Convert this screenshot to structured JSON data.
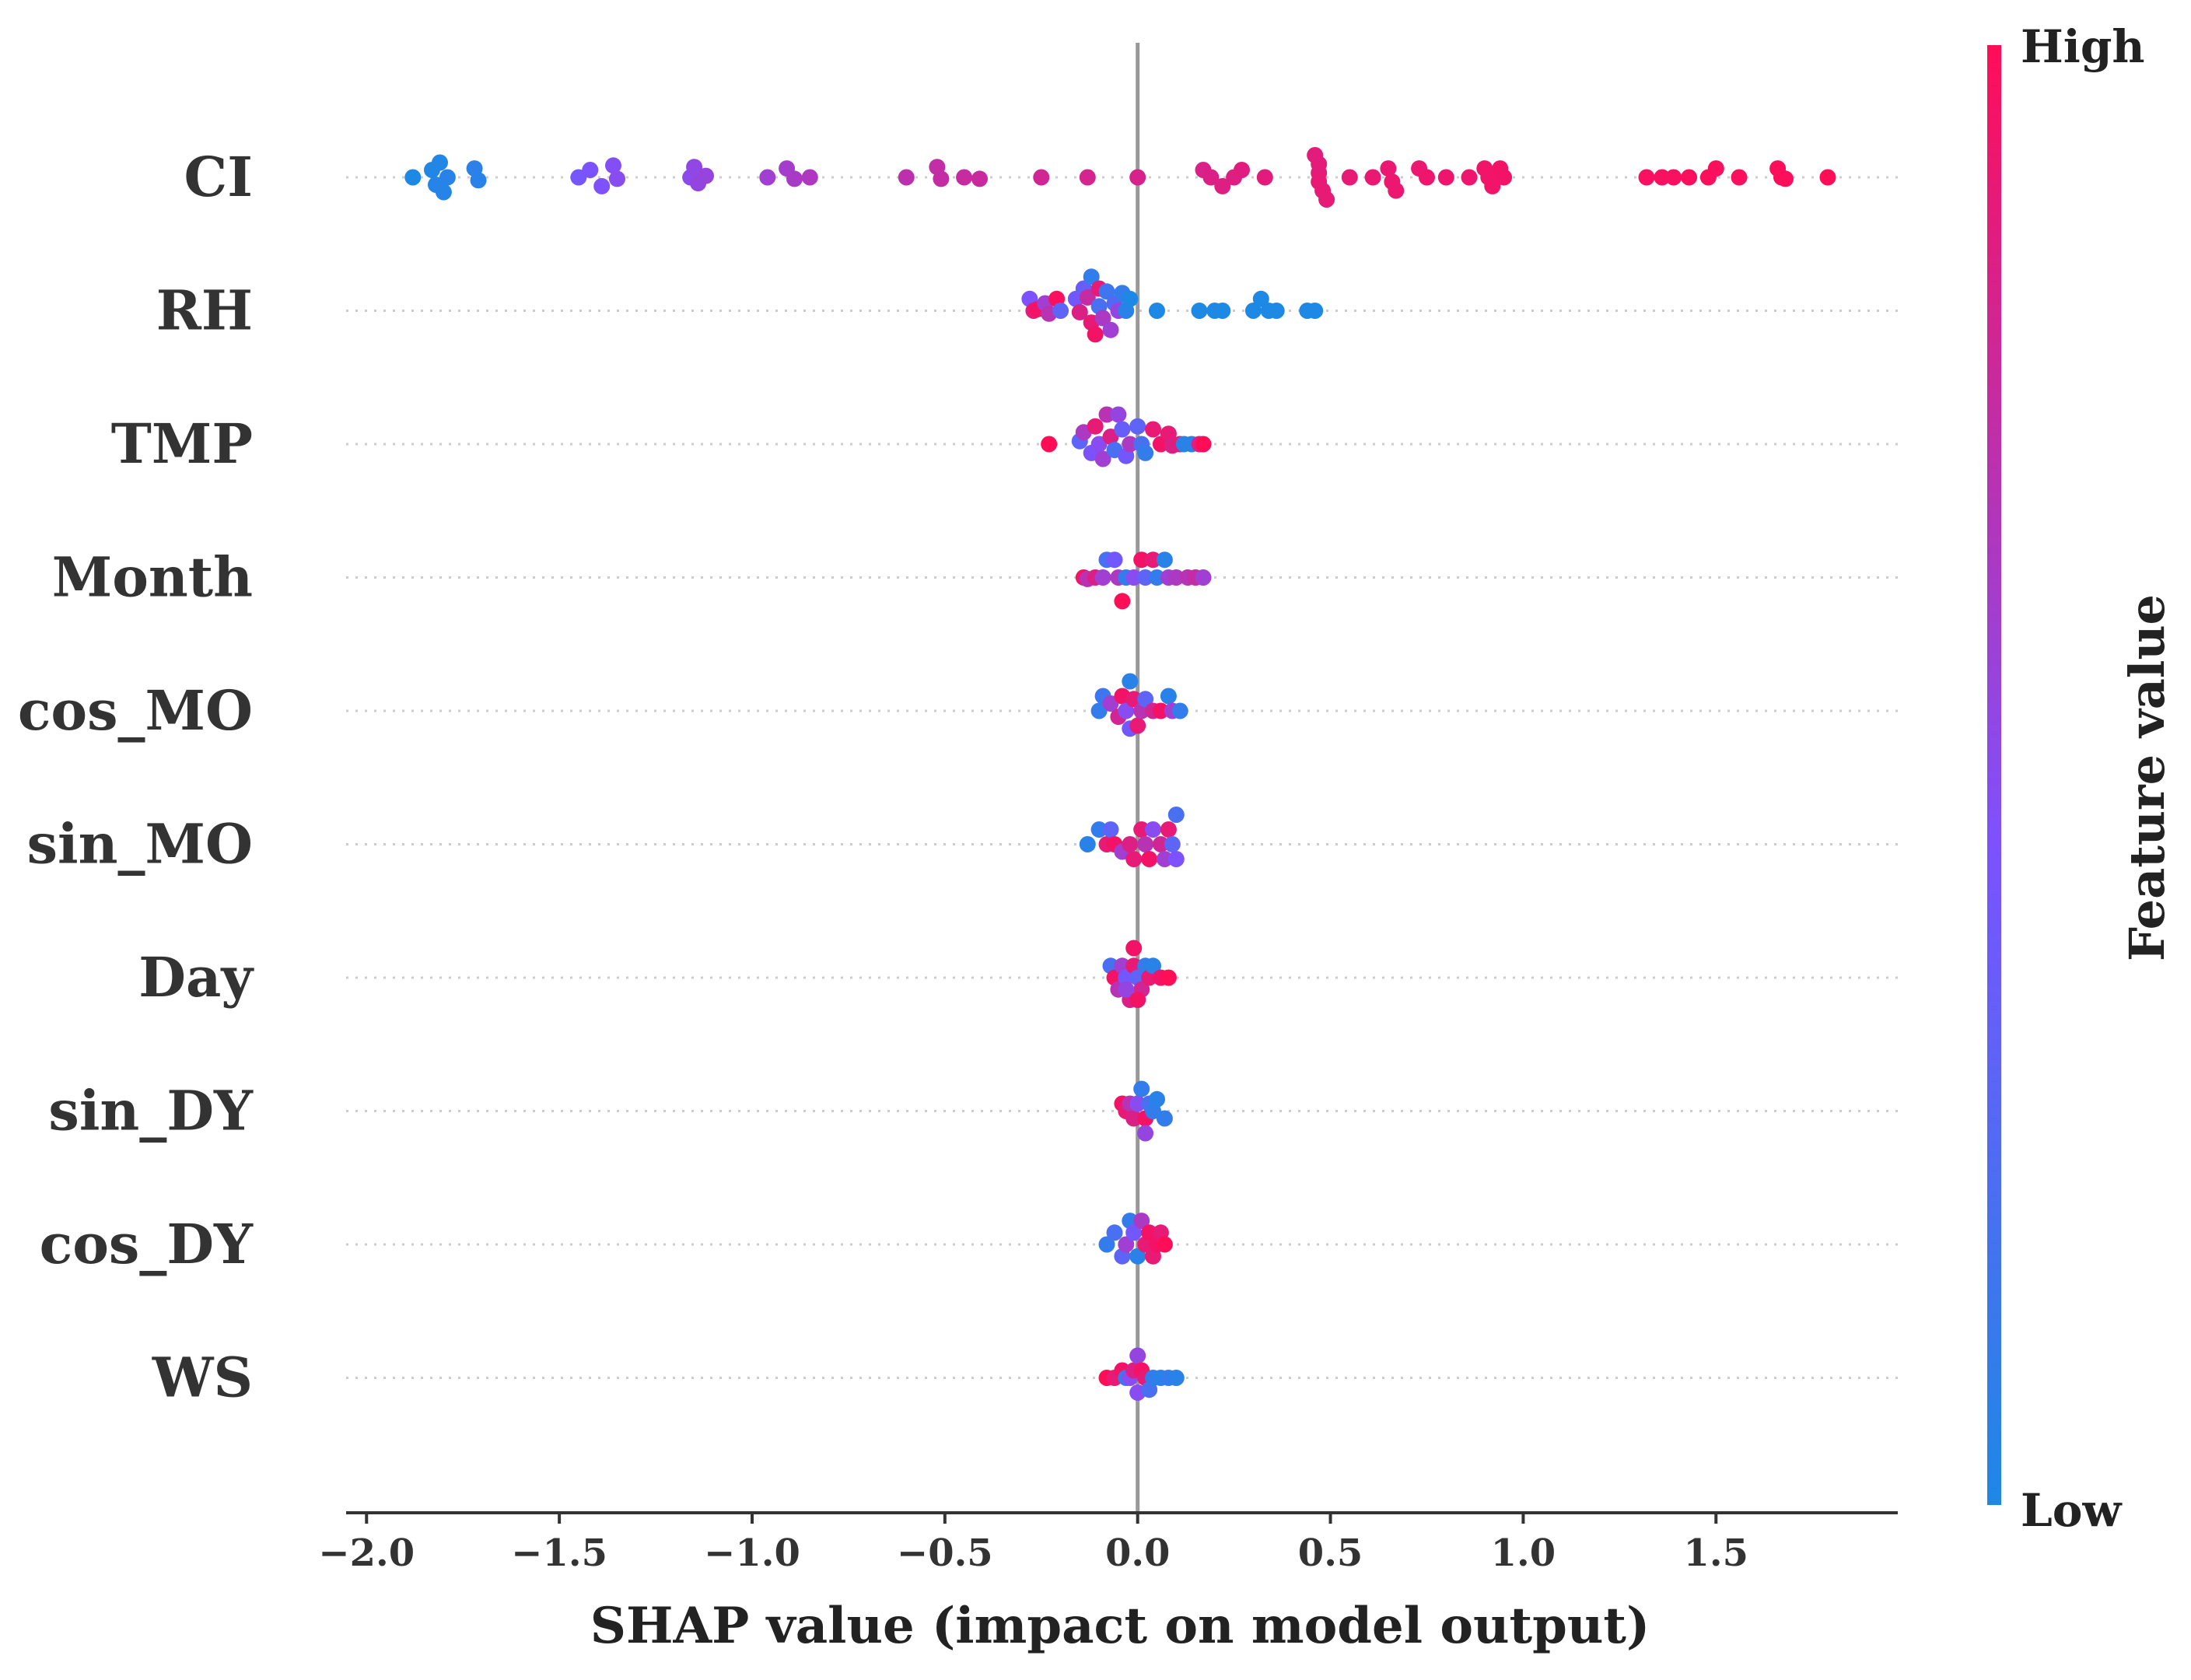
{
  "chart_data": {
    "type": "scatter",
    "subtype": "shap-beeswarm-summary",
    "xlabel": "SHAP value (impact on model output)",
    "xlim": [
      -2.05,
      1.97
    ],
    "xticks": [
      -2.0,
      -1.5,
      -1.0,
      -0.5,
      0.0,
      0.5,
      1.0,
      1.5
    ],
    "xtick_labels": [
      "−2.0",
      "−1.5",
      "−1.0",
      "−0.5",
      "0.0",
      "0.5",
      "1.0",
      "1.5"
    ],
    "colorbar": {
      "title": "Feature value",
      "high_label": "High",
      "low_label": "Low",
      "low_color": "#1e88e5",
      "mid_color": "#7c52ff",
      "high_color": "#ff0d57"
    },
    "features": [
      {
        "name": "CI",
        "points": [
          [
            -1.88,
            0.0,
            0.0
          ],
          [
            -1.83,
            0.5,
            0.02
          ],
          [
            -1.82,
            -0.5,
            0.03
          ],
          [
            -1.81,
            1.0,
            0.02
          ],
          [
            -1.8,
            -1.0,
            0.04
          ],
          [
            -1.79,
            0.0,
            0.05
          ],
          [
            -1.72,
            0.6,
            0.06
          ],
          [
            -1.71,
            -0.2,
            0.05
          ],
          [
            -1.45,
            0.0,
            0.42
          ],
          [
            -1.42,
            0.5,
            0.44
          ],
          [
            -1.39,
            -0.6,
            0.46
          ],
          [
            -1.36,
            0.8,
            0.48
          ],
          [
            -1.35,
            -0.1,
            0.5
          ],
          [
            -1.16,
            0.0,
            0.52
          ],
          [
            -1.15,
            0.7,
            0.54
          ],
          [
            -1.14,
            -0.4,
            0.55
          ],
          [
            -1.12,
            0.1,
            0.56
          ],
          [
            -0.96,
            0.0,
            0.6
          ],
          [
            -0.91,
            0.6,
            0.62
          ],
          [
            -0.89,
            -0.1,
            0.64
          ],
          [
            -0.85,
            0.0,
            0.66
          ],
          [
            -0.6,
            0.0,
            0.72
          ],
          [
            -0.52,
            0.7,
            0.74
          ],
          [
            -0.51,
            -0.1,
            0.75
          ],
          [
            -0.45,
            0.0,
            0.76
          ],
          [
            -0.41,
            -0.1,
            0.77
          ],
          [
            -0.25,
            0.0,
            0.8
          ],
          [
            -0.13,
            0.0,
            0.82
          ],
          [
            0.0,
            0.0,
            0.83
          ],
          [
            0.17,
            0.5,
            0.84
          ],
          [
            0.19,
            0.0,
            0.85
          ],
          [
            0.22,
            -0.6,
            0.86
          ],
          [
            0.25,
            0.0,
            0.86
          ],
          [
            0.27,
            0.5,
            0.87
          ],
          [
            0.33,
            0.0,
            0.88
          ],
          [
            0.46,
            1.5,
            0.88
          ],
          [
            0.47,
            0.9,
            0.89
          ],
          [
            0.47,
            0.3,
            0.89
          ],
          [
            0.47,
            -0.3,
            0.9
          ],
          [
            0.48,
            -0.9,
            0.9
          ],
          [
            0.49,
            -1.5,
            0.9
          ],
          [
            0.55,
            0.0,
            0.9
          ],
          [
            0.61,
            0.0,
            0.91
          ],
          [
            0.65,
            0.6,
            0.91
          ],
          [
            0.66,
            -0.3,
            0.92
          ],
          [
            0.67,
            -0.9,
            0.92
          ],
          [
            0.73,
            0.6,
            0.92
          ],
          [
            0.75,
            0.0,
            0.93
          ],
          [
            0.8,
            0.0,
            0.93
          ],
          [
            0.86,
            0.0,
            0.93
          ],
          [
            0.9,
            0.6,
            0.94
          ],
          [
            0.91,
            0.0,
            0.94
          ],
          [
            0.92,
            -0.6,
            0.94
          ],
          [
            0.94,
            0.6,
            0.95
          ],
          [
            0.95,
            0.0,
            0.95
          ],
          [
            1.32,
            0.0,
            0.97
          ],
          [
            1.36,
            0.0,
            0.97
          ],
          [
            1.39,
            0.0,
            0.97
          ],
          [
            1.43,
            0.0,
            0.98
          ],
          [
            1.48,
            0.0,
            0.98
          ],
          [
            1.5,
            0.6,
            0.98
          ],
          [
            1.56,
            0.0,
            0.98
          ],
          [
            1.66,
            0.6,
            0.99
          ],
          [
            1.67,
            0.0,
            0.99
          ],
          [
            1.68,
            -0.1,
            0.99
          ],
          [
            1.79,
            0.0,
            1.0
          ]
        ]
      },
      {
        "name": "RH",
        "points": [
          [
            -0.28,
            0.8,
            0.45
          ],
          [
            -0.27,
            0.0,
            0.9
          ],
          [
            -0.26,
            0.1,
            0.95
          ],
          [
            -0.24,
            0.5,
            0.6
          ],
          [
            -0.23,
            -0.2,
            0.7
          ],
          [
            -0.21,
            0.8,
            0.98
          ],
          [
            -0.2,
            0.0,
            0.3
          ],
          [
            -0.16,
            0.8,
            0.4
          ],
          [
            -0.15,
            -0.1,
            0.85
          ],
          [
            -0.14,
            1.5,
            0.35
          ],
          [
            -0.13,
            0.9,
            0.75
          ],
          [
            -0.12,
            2.3,
            0.1
          ],
          [
            -0.12,
            -0.8,
            0.9
          ],
          [
            -0.11,
            -1.6,
            0.95
          ],
          [
            -0.1,
            1.5,
            0.9
          ],
          [
            -0.1,
            0.3,
            0.2
          ],
          [
            -0.09,
            -0.5,
            0.65
          ],
          [
            -0.08,
            1.3,
            0.15
          ],
          [
            -0.07,
            -1.3,
            0.6
          ],
          [
            -0.06,
            0.5,
            0.25
          ],
          [
            -0.05,
            0.0,
            0.55
          ],
          [
            -0.04,
            1.2,
            0.1
          ],
          [
            -0.03,
            0.0,
            0.05
          ],
          [
            -0.02,
            0.8,
            0.0
          ],
          [
            0.05,
            0.0,
            0.0
          ],
          [
            0.16,
            0.0,
            0.0
          ],
          [
            0.2,
            0.0,
            0.0
          ],
          [
            0.22,
            0.0,
            0.0
          ],
          [
            0.3,
            0.0,
            0.0
          ],
          [
            0.32,
            0.8,
            0.0
          ],
          [
            0.34,
            0.0,
            0.0
          ],
          [
            0.36,
            0.0,
            0.0
          ],
          [
            0.44,
            0.0,
            0.0
          ],
          [
            0.46,
            0.0,
            0.0
          ]
        ]
      },
      {
        "name": "TMP",
        "points": [
          [
            -0.23,
            0.0,
            1.0
          ],
          [
            -0.15,
            0.2,
            0.3
          ],
          [
            -0.14,
            0.8,
            0.65
          ],
          [
            -0.12,
            -0.6,
            0.45
          ],
          [
            -0.11,
            1.2,
            0.9
          ],
          [
            -0.1,
            0.0,
            0.5
          ],
          [
            -0.09,
            -1.0,
            0.6
          ],
          [
            -0.08,
            2.0,
            0.7
          ],
          [
            -0.07,
            0.5,
            0.85
          ],
          [
            -0.06,
            -0.4,
            0.2
          ],
          [
            -0.05,
            2.0,
            0.55
          ],
          [
            -0.04,
            1.0,
            0.35
          ],
          [
            -0.03,
            -0.8,
            0.4
          ],
          [
            -0.02,
            0.0,
            0.65
          ],
          [
            0.0,
            1.2,
            0.3
          ],
          [
            0.01,
            0.0,
            0.2
          ],
          [
            0.02,
            -0.6,
            0.1
          ],
          [
            0.04,
            1.0,
            0.9
          ],
          [
            0.06,
            0.0,
            0.95
          ],
          [
            0.08,
            0.7,
            0.9
          ],
          [
            0.09,
            -0.1,
            0.85
          ],
          [
            0.11,
            0.0,
            0.9
          ],
          [
            0.12,
            0.0,
            0.05
          ],
          [
            0.14,
            0.0,
            0.05
          ],
          [
            0.16,
            0.0,
            0.85
          ],
          [
            0.17,
            0.0,
            1.0
          ]
        ]
      },
      {
        "name": "Month",
        "points": [
          [
            -0.14,
            0.0,
            0.95
          ],
          [
            -0.13,
            -0.1,
            0.7
          ],
          [
            -0.11,
            0.0,
            0.85
          ],
          [
            -0.09,
            0.0,
            0.6
          ],
          [
            -0.08,
            1.2,
            0.2
          ],
          [
            -0.06,
            1.2,
            0.4
          ],
          [
            -0.05,
            0.0,
            0.65
          ],
          [
            -0.04,
            -1.6,
            1.0
          ],
          [
            -0.03,
            0.0,
            0.1
          ],
          [
            -0.01,
            0.0,
            0.5
          ],
          [
            0.01,
            1.2,
            0.95
          ],
          [
            0.02,
            0.0,
            0.3
          ],
          [
            0.04,
            1.2,
            0.9
          ],
          [
            0.05,
            0.0,
            0.1
          ],
          [
            0.07,
            1.2,
            0.05
          ],
          [
            0.08,
            0.0,
            0.6
          ],
          [
            0.1,
            0.0,
            0.65
          ],
          [
            0.13,
            0.0,
            0.7
          ],
          [
            0.15,
            0.0,
            0.75
          ],
          [
            0.17,
            0.0,
            0.6
          ]
        ]
      },
      {
        "name": "cos_MO",
        "points": [
          [
            -0.1,
            0.0,
            0.1
          ],
          [
            -0.09,
            1.0,
            0.15
          ],
          [
            -0.07,
            0.5,
            0.6
          ],
          [
            -0.05,
            -0.4,
            0.8
          ],
          [
            -0.04,
            1.0,
            0.95
          ],
          [
            -0.03,
            0.0,
            0.5
          ],
          [
            -0.02,
            2.0,
            0.05
          ],
          [
            -0.02,
            -1.2,
            0.4
          ],
          [
            -0.01,
            0.8,
            0.9
          ],
          [
            0.0,
            -1.0,
            0.9
          ],
          [
            0.01,
            0.0,
            0.7
          ],
          [
            0.02,
            0.8,
            0.3
          ],
          [
            0.04,
            0.0,
            0.8
          ],
          [
            0.06,
            0.0,
            0.95
          ],
          [
            0.08,
            1.0,
            0.05
          ],
          [
            0.09,
            0.0,
            0.6
          ],
          [
            0.11,
            0.0,
            0.1
          ]
        ]
      },
      {
        "name": "sin_MO",
        "points": [
          [
            -0.13,
            0.0,
            0.05
          ],
          [
            -0.1,
            1.0,
            0.1
          ],
          [
            -0.08,
            0.0,
            0.9
          ],
          [
            -0.07,
            1.0,
            0.3
          ],
          [
            -0.06,
            0.0,
            0.95
          ],
          [
            -0.04,
            -0.5,
            0.6
          ],
          [
            -0.02,
            0.0,
            0.85
          ],
          [
            -0.01,
            -1.0,
            0.9
          ],
          [
            0.01,
            1.0,
            0.9
          ],
          [
            0.02,
            0.0,
            0.7
          ],
          [
            0.03,
            -1.0,
            0.95
          ],
          [
            0.04,
            1.0,
            0.5
          ],
          [
            0.06,
            0.0,
            0.8
          ],
          [
            0.07,
            -1.0,
            0.6
          ],
          [
            0.08,
            1.0,
            0.9
          ],
          [
            0.09,
            0.0,
            0.3
          ],
          [
            0.1,
            -1.0,
            0.45
          ],
          [
            0.1,
            2.0,
            0.2
          ]
        ]
      },
      {
        "name": "Day",
        "points": [
          [
            -0.07,
            0.8,
            0.2
          ],
          [
            -0.06,
            0.0,
            0.95
          ],
          [
            -0.05,
            -0.8,
            0.7
          ],
          [
            -0.04,
            0.8,
            0.6
          ],
          [
            -0.03,
            0.0,
            0.4
          ],
          [
            -0.02,
            -1.5,
            0.85
          ],
          [
            -0.01,
            2.0,
            0.95
          ],
          [
            -0.01,
            0.8,
            0.9
          ],
          [
            0.0,
            0.0,
            0.3
          ],
          [
            0.01,
            -0.8,
            0.8
          ],
          [
            0.02,
            0.8,
            0.1
          ],
          [
            0.03,
            0.0,
            0.9
          ],
          [
            0.04,
            0.8,
            0.05
          ],
          [
            0.06,
            0.0,
            0.95
          ],
          [
            0.08,
            0.0,
            1.0
          ],
          [
            -0.03,
            -0.8,
            0.55
          ],
          [
            0.0,
            -1.5,
            0.95
          ]
        ]
      },
      {
        "name": "sin_DY",
        "points": [
          [
            -0.04,
            0.5,
            0.95
          ],
          [
            -0.03,
            0.0,
            0.9
          ],
          [
            -0.02,
            0.5,
            0.7
          ],
          [
            -0.01,
            -0.5,
            0.85
          ],
          [
            0.0,
            0.5,
            0.5
          ],
          [
            0.01,
            1.5,
            0.1
          ],
          [
            0.02,
            -0.5,
            0.95
          ],
          [
            0.02,
            -1.5,
            0.55
          ],
          [
            0.03,
            0.5,
            0.2
          ],
          [
            0.04,
            0.0,
            0.1
          ],
          [
            0.05,
            0.8,
            0.05
          ],
          [
            0.07,
            -0.5,
            0.1
          ]
        ]
      },
      {
        "name": "cos_DY",
        "points": [
          [
            -0.08,
            0.0,
            0.1
          ],
          [
            -0.06,
            0.8,
            0.2
          ],
          [
            -0.04,
            -0.8,
            0.3
          ],
          [
            -0.03,
            0.0,
            0.6
          ],
          [
            -0.02,
            1.6,
            0.1
          ],
          [
            -0.01,
            0.8,
            0.4
          ],
          [
            0.0,
            -0.8,
            0.05
          ],
          [
            0.01,
            1.6,
            0.65
          ],
          [
            0.02,
            0.0,
            0.9
          ],
          [
            0.03,
            0.8,
            0.95
          ],
          [
            0.04,
            -0.8,
            0.9
          ],
          [
            0.05,
            0.0,
            0.95
          ],
          [
            0.06,
            0.8,
            0.9
          ],
          [
            0.07,
            0.0,
            1.0
          ]
        ]
      },
      {
        "name": "WS",
        "points": [
          [
            -0.08,
            0.0,
            1.0
          ],
          [
            -0.06,
            0.0,
            0.9
          ],
          [
            -0.04,
            0.5,
            0.95
          ],
          [
            -0.03,
            0.0,
            0.1
          ],
          [
            -0.02,
            0.0,
            0.5
          ],
          [
            -0.01,
            0.5,
            0.85
          ],
          [
            0.0,
            -1.0,
            0.5
          ],
          [
            0.0,
            1.5,
            0.55
          ],
          [
            0.01,
            0.5,
            0.95
          ],
          [
            0.02,
            0.0,
            0.9
          ],
          [
            0.03,
            -0.8,
            0.2
          ],
          [
            0.04,
            0.0,
            0.1
          ],
          [
            0.06,
            0.0,
            0.05
          ],
          [
            0.08,
            0.0,
            0.1
          ],
          [
            0.1,
            0.0,
            0.05
          ]
        ]
      }
    ]
  }
}
